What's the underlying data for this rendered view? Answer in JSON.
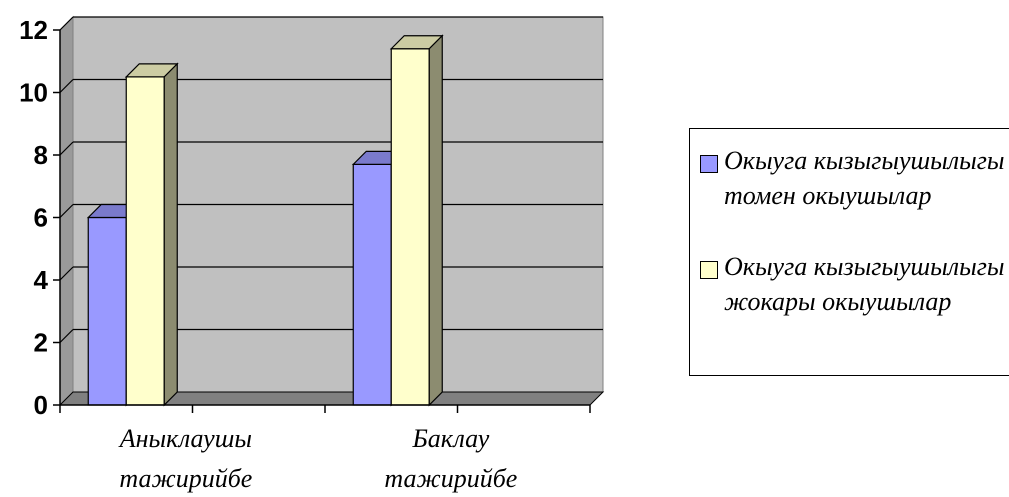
{
  "chart_data": {
    "type": "bar",
    "categories": [
      "Аныклаушы тажирийбе",
      "Баклау тажирийбе"
    ],
    "series": [
      {
        "name": "Окыуга кызыгыушылыгы томен окыушылар",
        "values": [
          6,
          7.7
        ],
        "color": "#9999ff"
      },
      {
        "name": "Окыуга кызыгыушылыгы жокары окыушылар",
        "values": [
          10.5,
          11.4
        ],
        "color": "#ffffcc"
      }
    ],
    "ylim": [
      0,
      12
    ],
    "yticks": [
      "0",
      "2",
      "4",
      "6",
      "8",
      "10",
      "12"
    ],
    "grid": true,
    "legend_position": "right",
    "plot_background": "#c0c0c0",
    "three_d": true
  }
}
